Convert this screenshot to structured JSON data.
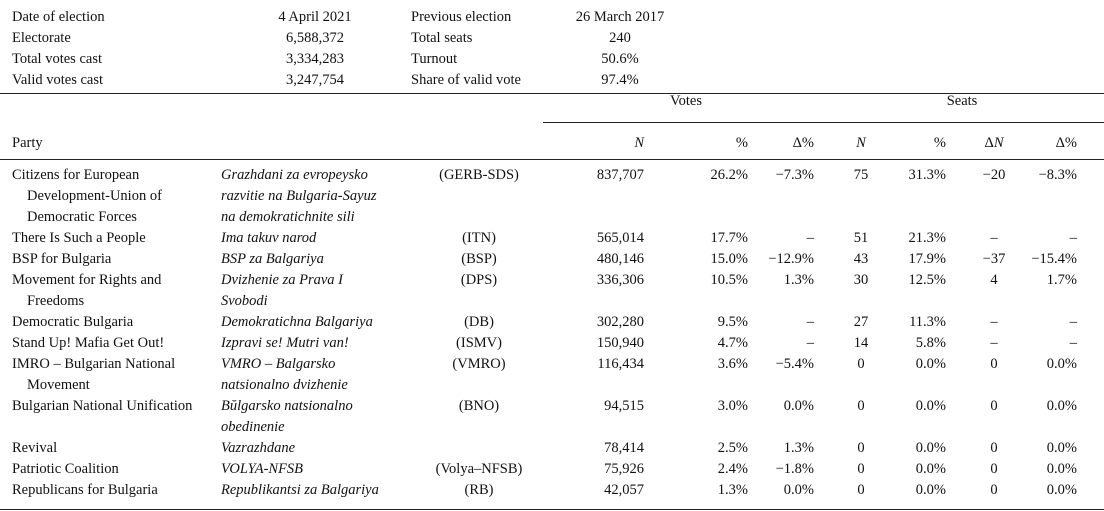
{
  "summary": {
    "left": [
      {
        "label": "Date of election",
        "value": "4 April 2021"
      },
      {
        "label": "Electorate",
        "value": "6,588,372"
      },
      {
        "label": "Total votes cast",
        "value": "3,334,283"
      },
      {
        "label": "Valid votes cast",
        "value": "3,247,754"
      }
    ],
    "right": [
      {
        "label": "Previous election",
        "value": "26 March 2017"
      },
      {
        "label": "Total seats",
        "value": "240"
      },
      {
        "label": "Turnout",
        "value": "50.6%"
      },
      {
        "label": "Share of valid vote",
        "value": "97.4%"
      }
    ]
  },
  "header": {
    "votes_group": "Votes",
    "seats_group": "Seats",
    "party": "Party",
    "votes_n": "N",
    "votes_pct": "%",
    "votes_delta_pct": "Δ%",
    "seats_n": "N",
    "seats_pct": "%",
    "seats_delta_n": "ΔN",
    "seats_delta_pct": "Δ%"
  },
  "rows": [
    {
      "name": [
        "Citizens for European",
        "Development-Union of",
        "Democratic Forces"
      ],
      "local": [
        "Grazhdani za evropeysko",
        "razvitie na Bulgaria-Sayuz",
        "na demokratichnite sili"
      ],
      "abbr": "(GERB-SDS)",
      "votes": "837,707",
      "vpct": "26.2%",
      "vdelta": "−7.3%",
      "seats": "75",
      "spct": "31.3%",
      "sdelta": "−20",
      "sdeltapct": "−8.3%"
    },
    {
      "name": [
        "There Is Such a People"
      ],
      "local": [
        "Ima takuv narod"
      ],
      "abbr": "(ITN)",
      "votes": "565,014",
      "vpct": "17.7%",
      "vdelta": "–",
      "seats": "51",
      "spct": "21.3%",
      "sdelta": "–",
      "sdeltapct": "–"
    },
    {
      "name": [
        "BSP for Bulgaria"
      ],
      "local": [
        "BSP za Balgariya"
      ],
      "abbr": "(BSP)",
      "votes": "480,146",
      "vpct": "15.0%",
      "vdelta": "−12.9%",
      "seats": "43",
      "spct": "17.9%",
      "sdelta": "−37",
      "sdeltapct": "−15.4%"
    },
    {
      "name": [
        "Movement for Rights and",
        "Freedoms"
      ],
      "local": [
        "Dvizhenie za Prava I",
        "Svobodi"
      ],
      "abbr": "(DPS)",
      "votes": "336,306",
      "vpct": "10.5%",
      "vdelta": "1.3%",
      "seats": "30",
      "spct": "12.5%",
      "sdelta": "4",
      "sdeltapct": "1.7%"
    },
    {
      "name": [
        "Democratic Bulgaria"
      ],
      "local": [
        "Demokratichna Balgariya"
      ],
      "abbr": "(DB)",
      "votes": "302,280",
      "vpct": "9.5%",
      "vdelta": "–",
      "seats": "27",
      "spct": "11.3%",
      "sdelta": "–",
      "sdeltapct": "–"
    },
    {
      "name": [
        "Stand Up! Mafia Get Out!"
      ],
      "local": [
        "Izpravi se! Mutri van!"
      ],
      "abbr": "(ISMV)",
      "votes": "150,940",
      "vpct": "4.7%",
      "vdelta": "–",
      "seats": "14",
      "spct": "5.8%",
      "sdelta": "–",
      "sdeltapct": "–"
    },
    {
      "name": [
        "IMRO – Bulgarian National",
        "Movement"
      ],
      "local": [
        "VMRO – Balgarsko",
        "natsionalno dvizhenie"
      ],
      "abbr": "(VMRO)",
      "votes": "116,434",
      "vpct": "3.6%",
      "vdelta": "−5.4%",
      "seats": "0",
      "spct": "0.0%",
      "sdelta": "0",
      "sdeltapct": "0.0%"
    },
    {
      "name": [
        "Bulgarian National Unification"
      ],
      "local": [
        "Bŭlgarsko natsionalno",
        "obedinenie"
      ],
      "abbr": "(BNO)",
      "votes": "94,515",
      "vpct": "3.0%",
      "vdelta": "0.0%",
      "seats": "0",
      "spct": "0.0%",
      "sdelta": "0",
      "sdeltapct": "0.0%"
    },
    {
      "name": [
        "Revival"
      ],
      "local": [
        "Vazrazhdane"
      ],
      "abbr": "",
      "votes": "78,414",
      "vpct": "2.5%",
      "vdelta": "1.3%",
      "seats": "0",
      "spct": "0.0%",
      "sdelta": "0",
      "sdeltapct": "0.0%"
    },
    {
      "name": [
        "Patriotic Coalition"
      ],
      "local": [
        "VOLYA-NFSB"
      ],
      "abbr": "(Volya–NFSB)",
      "votes": "75,926",
      "vpct": "2.4%",
      "vdelta": "−1.8%",
      "seats": "0",
      "spct": "0.0%",
      "sdelta": "0",
      "sdeltapct": "0.0%"
    },
    {
      "name": [
        "Republicans for Bulgaria"
      ],
      "local": [
        "Republikantsi za Balgariya"
      ],
      "abbr": "(RB)",
      "votes": "42,057",
      "vpct": "1.3%",
      "vdelta": "0.0%",
      "seats": "0",
      "spct": "0.0%",
      "sdelta": "0",
      "sdeltapct": "0.0%"
    }
  ]
}
